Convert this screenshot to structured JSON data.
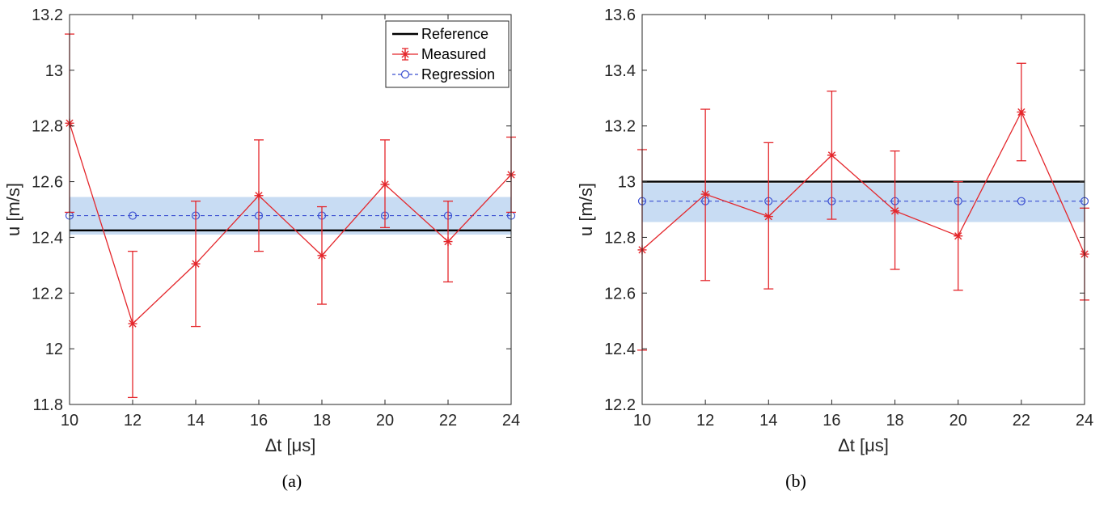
{
  "captions": [
    "(a)",
    "(b)"
  ],
  "colors": {
    "reference": "#000000",
    "measured": "#e4262b",
    "regression": "#3b4fd1",
    "band": "#c8dcf3"
  },
  "chart_data": [
    {
      "type": "line",
      "panel": "a",
      "xlabel": "Δt [μs]",
      "ylabel": "u [m/s]",
      "xlim": [
        10,
        24
      ],
      "ylim": [
        11.8,
        13.2
      ],
      "xticks": [
        10,
        12,
        14,
        16,
        18,
        20,
        22,
        24
      ],
      "yticks": [
        11.8,
        12,
        12.2,
        12.4,
        12.6,
        12.8,
        13,
        13.2
      ],
      "ytick_labels": [
        "11.8",
        "12",
        "12.2",
        "12.4",
        "12.6",
        "12.8",
        "13",
        "13.2"
      ],
      "legend": {
        "placement": "top-right",
        "entries": [
          "Reference",
          "Measured",
          "Regression"
        ]
      },
      "series": [
        {
          "name": "Reference",
          "style": "solid-line",
          "x": [
            10,
            24
          ],
          "y": [
            12.425,
            12.425
          ]
        },
        {
          "name": "Measured",
          "style": "line-star-errorbar",
          "x": [
            10,
            12,
            14,
            16,
            18,
            20,
            22,
            24
          ],
          "y": [
            12.81,
            12.09,
            12.305,
            12.55,
            12.335,
            12.59,
            12.385,
            12.625
          ],
          "error_low": [
            12.49,
            11.825,
            12.08,
            12.35,
            12.16,
            12.435,
            12.24,
            12.49
          ],
          "error_high": [
            13.13,
            12.35,
            12.53,
            12.75,
            12.51,
            12.75,
            12.53,
            12.76
          ]
        },
        {
          "name": "Regression",
          "style": "dashed-circle",
          "x": [
            10,
            12,
            14,
            16,
            18,
            20,
            22,
            24
          ],
          "y": [
            12.478,
            12.478,
            12.478,
            12.478,
            12.478,
            12.478,
            12.478,
            12.478
          ]
        }
      ],
      "band": {
        "low": 12.41,
        "high": 12.545
      }
    },
    {
      "type": "line",
      "panel": "b",
      "xlabel": "Δt [μs]",
      "ylabel": "u [m/s]",
      "xlim": [
        10,
        24
      ],
      "ylim": [
        12.2,
        13.6
      ],
      "xticks": [
        10,
        12,
        14,
        16,
        18,
        20,
        22,
        24
      ],
      "yticks": [
        12.2,
        12.4,
        12.6,
        12.8,
        13,
        13.2,
        13.4,
        13.6
      ],
      "ytick_labels": [
        "12.2",
        "12.4",
        "12.6",
        "12.8",
        "13",
        "13.2",
        "13.4",
        "13.6"
      ],
      "series": [
        {
          "name": "Reference",
          "style": "solid-line",
          "x": [
            10,
            24
          ],
          "y": [
            13.0,
            13.0
          ]
        },
        {
          "name": "Measured",
          "style": "line-star-errorbar",
          "x": [
            10,
            12,
            14,
            16,
            18,
            20,
            22,
            24
          ],
          "y": [
            12.755,
            12.955,
            12.875,
            13.095,
            12.895,
            12.805,
            13.25,
            12.74
          ],
          "error_low": [
            12.395,
            12.645,
            12.615,
            12.865,
            12.685,
            12.61,
            13.075,
            12.575
          ],
          "error_high": [
            13.115,
            13.26,
            13.14,
            13.325,
            13.11,
            13.0,
            13.425,
            12.905
          ]
        },
        {
          "name": "Regression",
          "style": "dashed-circle",
          "x": [
            10,
            12,
            14,
            16,
            18,
            20,
            22,
            24
          ],
          "y": [
            12.93,
            12.93,
            12.93,
            12.93,
            12.93,
            12.93,
            12.93,
            12.93
          ]
        }
      ],
      "band": {
        "low": 12.855,
        "high": 12.995
      }
    }
  ]
}
